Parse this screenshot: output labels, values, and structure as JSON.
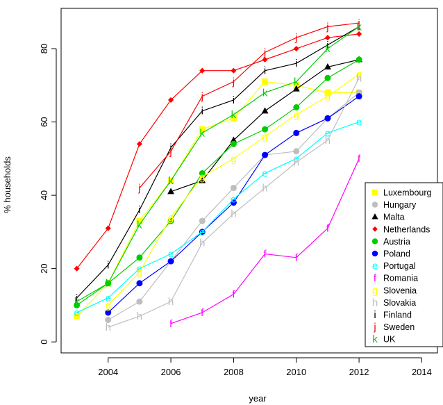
{
  "chart_data": {
    "type": "line",
    "title": "",
    "xlabel": "year",
    "ylabel": "% households",
    "xlim": [
      2002.5,
      2014.5
    ],
    "ylim": [
      -3,
      91
    ],
    "x_ticks": [
      2004,
      2006,
      2008,
      2010,
      2012,
      2014
    ],
    "y_ticks": [
      0,
      20,
      40,
      60,
      80
    ],
    "grid": false,
    "legend_position": "bottom-right",
    "series": [
      {
        "name": "Luxembourg",
        "color": "#ffff00",
        "marker": "square",
        "x": [
          2003,
          2004,
          2005,
          2006,
          2007,
          2008,
          2009,
          2010,
          2011,
          2012
        ],
        "y": [
          7,
          16,
          33,
          44,
          58,
          61,
          71,
          70,
          68,
          68
        ]
      },
      {
        "name": "Hungary",
        "color": "#bebebe",
        "marker": "circle",
        "x": [
          2004,
          2005,
          2006,
          2007,
          2008,
          2009,
          2010,
          2011,
          2012
        ],
        "y": [
          6,
          11,
          22,
          33,
          42,
          51,
          52,
          61,
          68
        ]
      },
      {
        "name": "Malta",
        "color": "#000000",
        "marker": "triangle",
        "x": [
          2006,
          2007,
          2008,
          2009,
          2010,
          2011,
          2012
        ],
        "y": [
          41,
          44,
          55,
          63,
          69,
          75,
          77
        ]
      },
      {
        "name": "Netherlands",
        "color": "#ff0000",
        "marker": "diamond",
        "x": [
          2003,
          2004,
          2005,
          2006,
          2007,
          2008,
          2009,
          2010,
          2011,
          2012
        ],
        "y": [
          20,
          31,
          54,
          66,
          74,
          74,
          77,
          80,
          83,
          84
        ]
      },
      {
        "name": "Austria",
        "color": "#00cd00",
        "marker": "circle",
        "x": [
          2003,
          2004,
          2005,
          2006,
          2007,
          2008,
          2009,
          2010,
          2011,
          2012
        ],
        "y": [
          10,
          16,
          23,
          33,
          46,
          54,
          58,
          64,
          72,
          77
        ]
      },
      {
        "name": "Poland",
        "color": "#0000ff",
        "marker": "circle",
        "x": [
          2004,
          2005,
          2006,
          2007,
          2008,
          2009,
          2010,
          2011,
          2012
        ],
        "y": [
          8,
          16,
          22,
          30,
          38,
          51,
          57,
          61,
          67
        ]
      },
      {
        "name": "Portugal",
        "color": "#00ffff",
        "marker": "e",
        "x": [
          2003,
          2004,
          2005,
          2006,
          2007,
          2008,
          2009,
          2010,
          2011,
          2012
        ],
        "y": [
          8,
          12,
          20,
          24,
          30,
          39,
          46,
          50,
          57,
          60
        ]
      },
      {
        "name": "Romania",
        "color": "#ff00ff",
        "marker": "f",
        "x": [
          2006,
          2007,
          2008,
          2009,
          2010,
          2011,
          2012
        ],
        "y": [
          5,
          8,
          13,
          24,
          23,
          31,
          50
        ]
      },
      {
        "name": "Slovenia",
        "color": "#ffff00",
        "marker": "g",
        "x": [
          2004,
          2005,
          2006,
          2007,
          2008,
          2009,
          2010,
          2011,
          2012
        ],
        "y": [
          10,
          19,
          34,
          45,
          50,
          56,
          62,
          67,
          73
        ]
      },
      {
        "name": "Slovakia",
        "color": "#bebebe",
        "marker": "h",
        "x": [
          2004,
          2005,
          2006,
          2007,
          2008,
          2009,
          2010,
          2011,
          2012
        ],
        "y": [
          4,
          7,
          11,
          27,
          35,
          42,
          49,
          55,
          72
        ]
      },
      {
        "name": "Finland",
        "color": "#000000",
        "marker": "i",
        "x": [
          2003,
          2004,
          2005,
          2006,
          2007,
          2008,
          2009,
          2010,
          2011,
          2012
        ],
        "y": [
          12,
          21,
          36,
          53,
          63,
          66,
          74,
          76,
          81,
          86
        ]
      },
      {
        "name": "Sweden",
        "color": "#ff0000",
        "marker": "j",
        "x": [
          2005,
          2006,
          2007,
          2008,
          2009,
          2010,
          2011,
          2012
        ],
        "y": [
          42,
          52,
          67,
          71,
          79,
          83,
          86,
          87
        ]
      },
      {
        "name": "UK",
        "color": "#00cd00",
        "marker": "k",
        "x": [
          2003,
          2004,
          2005,
          2006,
          2007,
          2008,
          2009,
          2010,
          2011,
          2012
        ],
        "y": [
          11,
          16,
          32,
          44,
          57,
          62,
          68,
          71,
          80,
          86
        ]
      }
    ]
  }
}
